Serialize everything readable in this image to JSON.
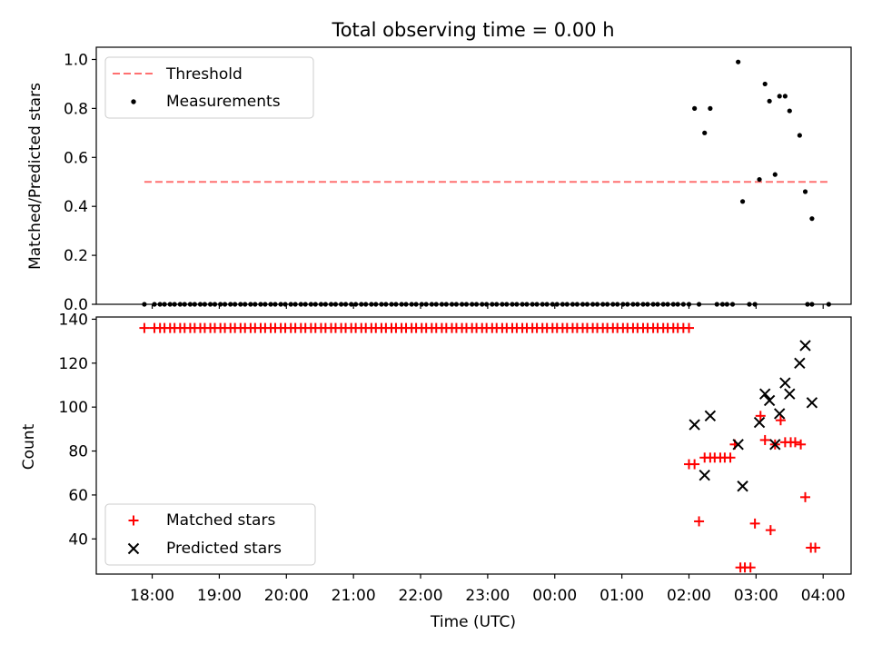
{
  "figure": {
    "title": "Total observing time = 0.00 h"
  },
  "chart_data": [
    {
      "type": "scatter",
      "panel": "top",
      "ylabel": "Matched/Predicted stars",
      "xlabel": "",
      "x_range_minutes_after_1800": [
        -50,
        625
      ],
      "ylim": [
        0.0,
        1.05
      ],
      "yticks": [
        0.0,
        0.2,
        0.4,
        0.6,
        0.8,
        1.0
      ],
      "ytick_labels": [
        "0.0",
        "0.2",
        "0.4",
        "0.6",
        "0.8",
        "1.0"
      ],
      "legend_position": "top-left",
      "threshold": {
        "name": "Threshold",
        "value": 0.5,
        "x_start": "17:53",
        "x_end": "04:05",
        "color": "#ff7070"
      },
      "measurements": {
        "name": "Measurements",
        "color": "#000000",
        "zero_run_times": [
          "17:53",
          "18:02",
          "18:07",
          "18:11",
          "18:16",
          "18:20",
          "18:25",
          "18:29",
          "18:34",
          "18:38",
          "18:43",
          "18:47",
          "18:52",
          "18:56",
          "19:01",
          "19:05",
          "19:10",
          "19:14",
          "19:19",
          "19:23",
          "19:28",
          "19:32",
          "19:37",
          "19:41",
          "19:46",
          "19:50",
          "19:55",
          "19:59",
          "20:04",
          "20:08",
          "20:13",
          "20:17",
          "20:22",
          "20:26",
          "20:31",
          "20:35",
          "20:40",
          "20:44",
          "20:49",
          "20:53",
          "20:58",
          "21:02",
          "21:07",
          "21:11",
          "21:16",
          "21:20",
          "21:25",
          "21:29",
          "21:34",
          "21:38",
          "21:43",
          "21:47",
          "21:52",
          "21:56",
          "22:01",
          "22:05",
          "22:10",
          "22:14",
          "22:19",
          "22:23",
          "22:28",
          "22:32",
          "22:37",
          "22:41",
          "22:46",
          "22:50",
          "22:55",
          "22:59",
          "23:04",
          "23:08",
          "23:13",
          "23:17",
          "23:22",
          "23:26",
          "23:31",
          "23:35",
          "23:40",
          "23:44",
          "23:49",
          "23:53",
          "23:58",
          "00:02",
          "00:07",
          "00:11",
          "00:16",
          "00:20",
          "00:25",
          "00:29",
          "00:34",
          "00:38",
          "00:43",
          "00:47",
          "00:52",
          "00:56",
          "01:01",
          "01:05",
          "01:10",
          "01:14",
          "01:19",
          "01:23",
          "01:28",
          "01:32",
          "01:37",
          "01:41",
          "01:46",
          "01:50",
          "01:55",
          "02:00",
          "02:09",
          "02:25",
          "02:30",
          "02:34",
          "02:39",
          "02:54",
          "02:59",
          "03:46",
          "03:50",
          "04:05"
        ],
        "points": [
          {
            "t": "02:05",
            "v": 0.8
          },
          {
            "t": "02:14",
            "v": 0.7
          },
          {
            "t": "02:19",
            "v": 0.8
          },
          {
            "t": "02:44",
            "v": 0.99
          },
          {
            "t": "02:48",
            "v": 0.42
          },
          {
            "t": "03:03",
            "v": 0.51
          },
          {
            "t": "03:08",
            "v": 0.9
          },
          {
            "t": "03:12",
            "v": 0.83
          },
          {
            "t": "03:17",
            "v": 0.53
          },
          {
            "t": "03:21",
            "v": 0.85
          },
          {
            "t": "03:26",
            "v": 0.85
          },
          {
            "t": "03:30",
            "v": 0.79
          },
          {
            "t": "03:39",
            "v": 0.69
          },
          {
            "t": "03:44",
            "v": 0.46
          },
          {
            "t": "03:50",
            "v": 0.35
          }
        ]
      }
    },
    {
      "type": "scatter",
      "panel": "bottom",
      "xlabel": "Time (UTC)",
      "ylabel": "Count",
      "x_range_minutes_after_1800": [
        -50,
        625
      ],
      "ylim": [
        24,
        141
      ],
      "yticks": [
        40,
        60,
        80,
        100,
        120,
        140
      ],
      "ytick_labels": [
        "40",
        "60",
        "80",
        "100",
        "120",
        "140"
      ],
      "xtick_labels": [
        "18:00",
        "19:00",
        "20:00",
        "21:00",
        "22:00",
        "23:00",
        "00:00",
        "01:00",
        "02:00",
        "03:00",
        "04:00"
      ],
      "legend_position": "bottom-left",
      "series": [
        {
          "name": "Matched stars",
          "marker": "+",
          "color": "#ff0000",
          "constant_value": 136,
          "constant_times": [
            "17:53",
            "18:02",
            "18:07",
            "18:11",
            "18:16",
            "18:20",
            "18:25",
            "18:29",
            "18:34",
            "18:38",
            "18:43",
            "18:47",
            "18:52",
            "18:56",
            "19:01",
            "19:05",
            "19:10",
            "19:14",
            "19:19",
            "19:23",
            "19:28",
            "19:32",
            "19:37",
            "19:41",
            "19:46",
            "19:50",
            "19:55",
            "19:59",
            "20:04",
            "20:08",
            "20:13",
            "20:17",
            "20:22",
            "20:26",
            "20:31",
            "20:35",
            "20:40",
            "20:44",
            "20:49",
            "20:53",
            "20:58",
            "21:02",
            "21:07",
            "21:11",
            "21:16",
            "21:20",
            "21:25",
            "21:29",
            "21:34",
            "21:38",
            "21:43",
            "21:47",
            "21:52",
            "21:56",
            "22:01",
            "22:05",
            "22:10",
            "22:14",
            "22:19",
            "22:23",
            "22:28",
            "22:32",
            "22:37",
            "22:41",
            "22:46",
            "22:50",
            "22:55",
            "22:59",
            "23:04",
            "23:08",
            "23:13",
            "23:17",
            "23:22",
            "23:26",
            "23:31",
            "23:35",
            "23:40",
            "23:44",
            "23:49",
            "23:53",
            "23:58",
            "00:02",
            "00:07",
            "00:11",
            "00:16",
            "00:20",
            "00:25",
            "00:29",
            "00:34",
            "00:38",
            "00:43",
            "00:47",
            "00:52",
            "00:56",
            "01:01",
            "01:05",
            "01:10",
            "01:14",
            "01:19",
            "01:23",
            "01:28",
            "01:32",
            "01:37",
            "01:41",
            "01:46",
            "01:50",
            "01:55",
            "02:00"
          ],
          "points": [
            {
              "t": "02:00",
              "v": 74
            },
            {
              "t": "02:05",
              "v": 74
            },
            {
              "t": "02:09",
              "v": 48
            },
            {
              "t": "02:14",
              "v": 77
            },
            {
              "t": "02:19",
              "v": 77
            },
            {
              "t": "02:23",
              "v": 77
            },
            {
              "t": "02:28",
              "v": 77
            },
            {
              "t": "02:32",
              "v": 77
            },
            {
              "t": "02:37",
              "v": 77
            },
            {
              "t": "02:41",
              "v": 83
            },
            {
              "t": "02:46",
              "v": 27
            },
            {
              "t": "02:50",
              "v": 27
            },
            {
              "t": "02:55",
              "v": 27
            },
            {
              "t": "02:59",
              "v": 47
            },
            {
              "t": "03:04",
              "v": 96
            },
            {
              "t": "03:08",
              "v": 85
            },
            {
              "t": "03:13",
              "v": 44
            },
            {
              "t": "03:17",
              "v": 83
            },
            {
              "t": "03:22",
              "v": 94
            },
            {
              "t": "03:26",
              "v": 84
            },
            {
              "t": "03:31",
              "v": 84
            },
            {
              "t": "03:35",
              "v": 84
            },
            {
              "t": "03:40",
              "v": 83
            },
            {
              "t": "03:44",
              "v": 59
            },
            {
              "t": "03:49",
              "v": 36
            },
            {
              "t": "03:53",
              "v": 36
            }
          ]
        },
        {
          "name": "Predicted stars",
          "marker": "x",
          "color": "#000000",
          "points": [
            {
              "t": "02:05",
              "v": 92
            },
            {
              "t": "02:14",
              "v": 69
            },
            {
              "t": "02:19",
              "v": 96
            },
            {
              "t": "02:44",
              "v": 83
            },
            {
              "t": "02:48",
              "v": 64
            },
            {
              "t": "03:03",
              "v": 93
            },
            {
              "t": "03:08",
              "v": 106
            },
            {
              "t": "03:12",
              "v": 103
            },
            {
              "t": "03:17",
              "v": 83
            },
            {
              "t": "03:21",
              "v": 97
            },
            {
              "t": "03:26",
              "v": 111
            },
            {
              "t": "03:30",
              "v": 106
            },
            {
              "t": "03:39",
              "v": 120
            },
            {
              "t": "03:44",
              "v": 128
            },
            {
              "t": "03:50",
              "v": 102
            }
          ]
        }
      ]
    }
  ]
}
